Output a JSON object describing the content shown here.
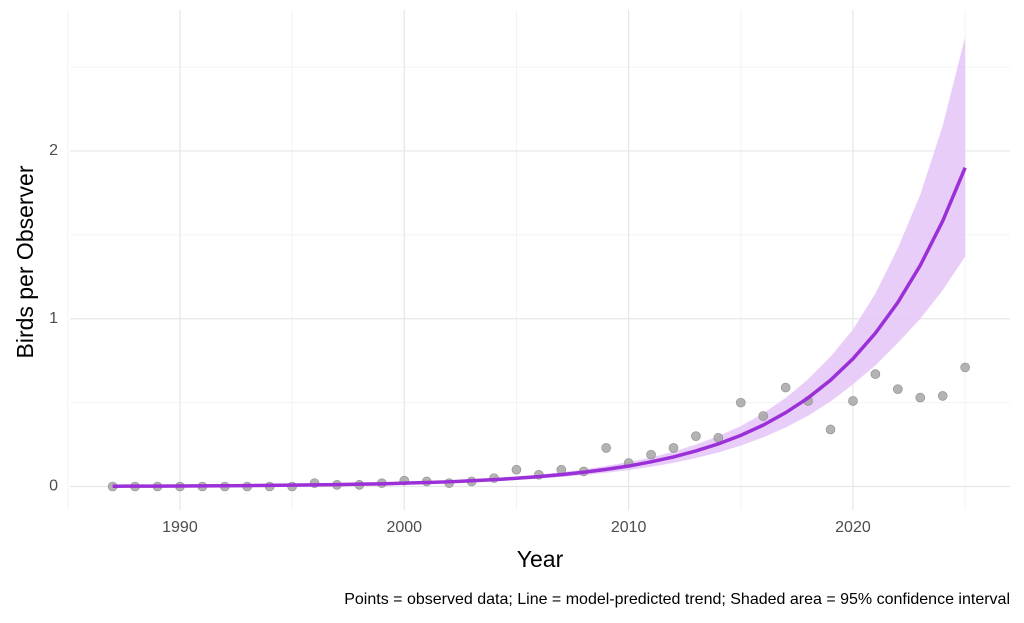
{
  "chart_data": {
    "type": "line",
    "x_label": "Year",
    "y_label": "Birds per Observer",
    "caption": "Points = observed data; Line = model-predicted trend; Shaded area = 95% confidence interval",
    "x": [
      1987,
      1988,
      1989,
      1990,
      1991,
      1992,
      1993,
      1994,
      1995,
      1996,
      1997,
      1998,
      1999,
      2000,
      2001,
      2002,
      2003,
      2004,
      2005,
      2006,
      2007,
      2008,
      2009,
      2010,
      2011,
      2012,
      2013,
      2014,
      2015,
      2016,
      2017,
      2018,
      2019,
      2020,
      2021,
      2022,
      2023,
      2024,
      2025
    ],
    "points": {
      "color": "#a6a6a6",
      "values": [
        0,
        0,
        0,
        0,
        0,
        0,
        0,
        0,
        0,
        0.02,
        0.01,
        0.01,
        0.02,
        0.035,
        0.03,
        0.02,
        0.03,
        0.05,
        0.1,
        0.07,
        0.1,
        0.09,
        0.23,
        0.14,
        0.19,
        0.23,
        0.3,
        0.29,
        0.5,
        0.42,
        0.59,
        0.51,
        0.34,
        0.51,
        0.67,
        0.58,
        0.53,
        0.54,
        0.71
      ]
    },
    "trend": {
      "color": "#9b2fd8",
      "values": [
        0.0018,
        0.0022,
        0.0026,
        0.0032,
        0.0038,
        0.0046,
        0.0055,
        0.0066,
        0.0079,
        0.0095,
        0.011,
        0.014,
        0.016,
        0.02,
        0.024,
        0.028,
        0.034,
        0.041,
        0.049,
        0.059,
        0.071,
        0.085,
        0.102,
        0.122,
        0.147,
        0.176,
        0.212,
        0.254,
        0.305,
        0.366,
        0.44,
        0.528,
        0.634,
        0.761,
        0.914,
        1.097,
        1.318,
        1.582,
        1.9
      ]
    },
    "ribbon": {
      "color": "#e6c8f7",
      "lower": [
        0.0014,
        0.0018,
        0.0021,
        0.0026,
        0.003,
        0.0037,
        0.0044,
        0.0053,
        0.0063,
        0.0076,
        0.009,
        0.011,
        0.013,
        0.016,
        0.019,
        0.022,
        0.027,
        0.033,
        0.039,
        0.047,
        0.057,
        0.068,
        0.082,
        0.098,
        0.118,
        0.141,
        0.17,
        0.203,
        0.244,
        0.293,
        0.352,
        0.422,
        0.507,
        0.609,
        0.722,
        0.856,
        1.0,
        1.17,
        1.37
      ],
      "upper": [
        0.0022,
        0.0026,
        0.0031,
        0.0038,
        0.0046,
        0.0055,
        0.0066,
        0.0079,
        0.0095,
        0.011,
        0.013,
        0.017,
        0.019,
        0.024,
        0.029,
        0.034,
        0.041,
        0.049,
        0.059,
        0.071,
        0.085,
        0.102,
        0.122,
        0.146,
        0.173,
        0.208,
        0.25,
        0.3,
        0.36,
        0.436,
        0.528,
        0.639,
        0.773,
        0.936,
        1.15,
        1.42,
        1.74,
        2.15,
        2.68
      ]
    },
    "xlim": [
      1985.1,
      2027.0
    ],
    "ylim": [
      -0.14,
      2.84
    ],
    "xticks": [
      1990,
      2000,
      2010,
      2020
    ],
    "yticks": [
      0,
      1,
      2
    ],
    "x_minor_grid": [
      1985,
      1995,
      2005,
      2015,
      2025
    ],
    "y_minor_grid": [
      0.5,
      1.5,
      2.5
    ],
    "grid": true
  }
}
